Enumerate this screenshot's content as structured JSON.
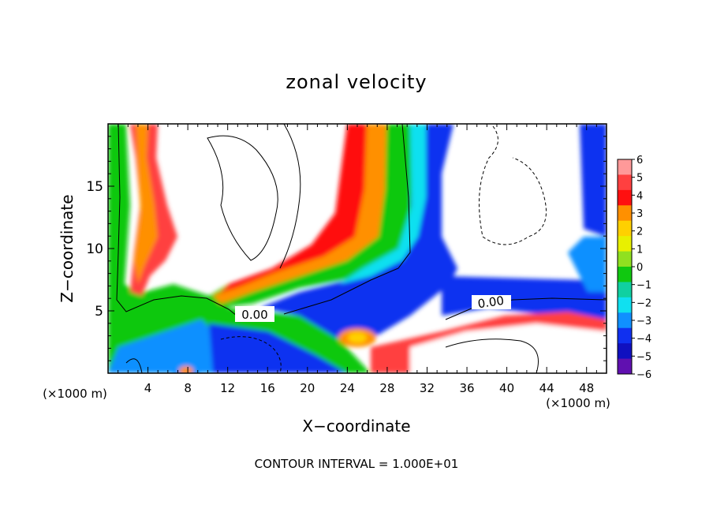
{
  "chart_data": {
    "type": "heatmap",
    "title": "zonal velocity",
    "xlabel": "X−coordinate",
    "ylabel": "Z−coordinate",
    "x_unit": "(×1000 m)",
    "z_unit": "(×1000 m)",
    "xlim": [
      0,
      50
    ],
    "ylim": [
      0,
      20
    ],
    "x_ticks": [
      4,
      8,
      12,
      16,
      20,
      24,
      28,
      32,
      36,
      40,
      44,
      48
    ],
    "x_tick_labels": [
      "4",
      "8",
      "12",
      "16",
      "20",
      "24",
      "28",
      "32",
      "36",
      "40",
      "44",
      "48"
    ],
    "y_ticks": [
      5,
      10,
      15
    ],
    "y_tick_labels": [
      "5",
      "10",
      "15"
    ],
    "colorbar": {
      "levels": [
        6,
        5,
        4,
        3,
        2,
        1,
        0,
        -1,
        -2,
        -3,
        -4,
        -5,
        -6
      ],
      "labels": [
        "6",
        "5",
        "4",
        "3",
        "2",
        "1",
        "0",
        "−1",
        "−2",
        "−3",
        "−4",
        "−5",
        "−6"
      ],
      "colors": [
        "#ff9999",
        "#ff4040",
        "#ff1010",
        "#ff9000",
        "#ffd000",
        "#e8f000",
        "#90e020",
        "#10c810",
        "#10d0a0",
        "#10e0f0",
        "#1090ff",
        "#1030f0",
        "#1010c0",
        "#6010b0"
      ]
    },
    "contour_labels": [
      "0.00",
      "0.00"
    ],
    "footer": "CONTOUR INTERVAL = 1.000E+01"
  }
}
